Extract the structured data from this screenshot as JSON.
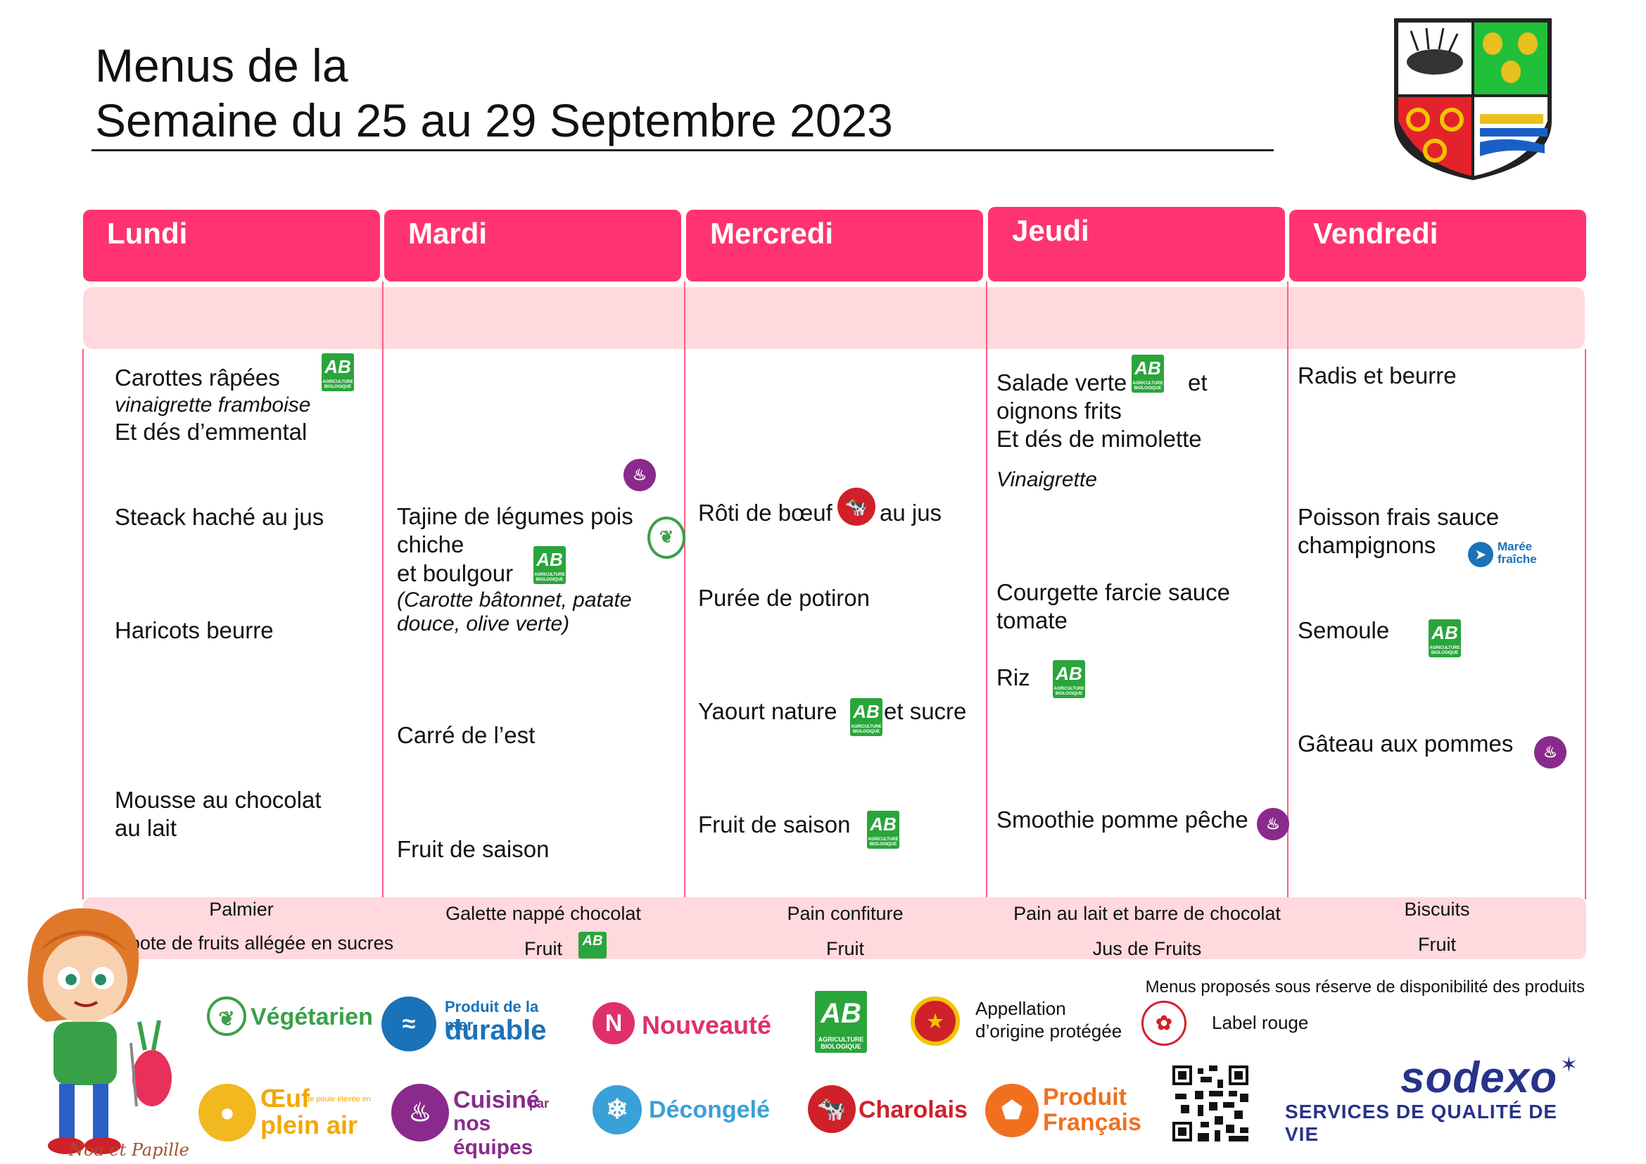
{
  "header": {
    "title_line1": "Menus de la",
    "title_line2": "Semaine du 25 au 29 Septembre 2023"
  },
  "days": [
    {
      "label": "Lundi"
    },
    {
      "label": "Mardi"
    },
    {
      "label": "Mercredi"
    },
    {
      "label": "Jeudi"
    },
    {
      "label": "Vendredi"
    }
  ],
  "lundi": {
    "starter": "Carottes râpées",
    "starter_sauce": "vinaigrette framboise",
    "starter_extra": "Et dés d’emmental",
    "main": "Steack haché au jus",
    "side": "Haricots beurre",
    "dessert_1": "Mousse au chocolat",
    "dessert_2": "au lait",
    "snack_1": "Palmier",
    "snack_2": "Compote de fruits allégée en sucres"
  },
  "mardi": {
    "main_1": "Tajine de légumes pois",
    "main_2": "chiche",
    "main_3": "et boulgour",
    "main_note_1": "(Carotte bâtonnet, patate",
    "main_note_2": "douce, olive verte)",
    "cheese": "Carré de l’est",
    "dessert": "Fruit de saison",
    "snack_1": "Galette nappé chocolat",
    "snack_2": "Fruit"
  },
  "mercredi": {
    "main_a": "Rôti de bœuf",
    "main_b": "au jus",
    "side": "Purée de potiron",
    "dairy_a": "Yaourt nature",
    "dairy_b": "et sucre",
    "dessert": "Fruit de saison",
    "snack_1": "Pain confiture",
    "snack_2": "Fruit"
  },
  "jeudi": {
    "starter_a": "Salade verte",
    "starter_b": "et",
    "starter_2": "oignons frits",
    "starter_3": "Et dés de mimolette",
    "sauce": "Vinaigrette",
    "main_1": "Courgette farcie sauce",
    "main_2": "tomate",
    "side": "Riz",
    "dessert": "Smoothie pomme pêche",
    "snack_1": "Pain au lait et barre de chocolat",
    "snack_2": "Jus de Fruits"
  },
  "vendredi": {
    "starter": "Radis et beurre",
    "main_1": "Poisson frais sauce",
    "main_2": "champignons",
    "side": "Semoule",
    "dessert": "Gâteau aux pommes",
    "snack_1": "Biscuits",
    "snack_2": "Fruit"
  },
  "labels": {
    "ab_letters": "AB",
    "ab_small": "AGRICULTURE BIOLOGIQUE",
    "maree_1": "Marée",
    "maree_2": "fraîche"
  },
  "footer": {
    "disclaimer": "Menus proposés sous réserve de disponibilité des produits",
    "vegetarien": "Végétarien",
    "mer_1": "Produit de la mer",
    "mer_2": "durable",
    "nouveaute": "Nouveauté",
    "aop_1": "Appellation",
    "aop_2": "d’origine protégée",
    "label_rouge": "Label rouge",
    "oeuf_1": "Œuf",
    "oeuf_small": "de poule élevée en",
    "oeuf_2": "plein air",
    "cuisine_1": "Cuisiné",
    "cuisine_par": "par",
    "cuisine_2": "nos équipes",
    "decongele": "Décongelé",
    "charolais": "Charolais",
    "pf_1": "Produit",
    "pf_2": "Français",
    "sodexo": "sodexo",
    "sodexo_tagline": "SERVICES DE QUALITÉ DE VIE",
    "mascot": "Noa et Papille"
  },
  "colors": {
    "header_pink": "#ff3372",
    "band_pink": "#ffd9dd",
    "ab_green": "#2aa53c",
    "purple": "#8a2a8c",
    "blue": "#1a72b8",
    "red": "#d0202a",
    "orange": "#f07020",
    "sodexo_blue": "#27338a"
  }
}
